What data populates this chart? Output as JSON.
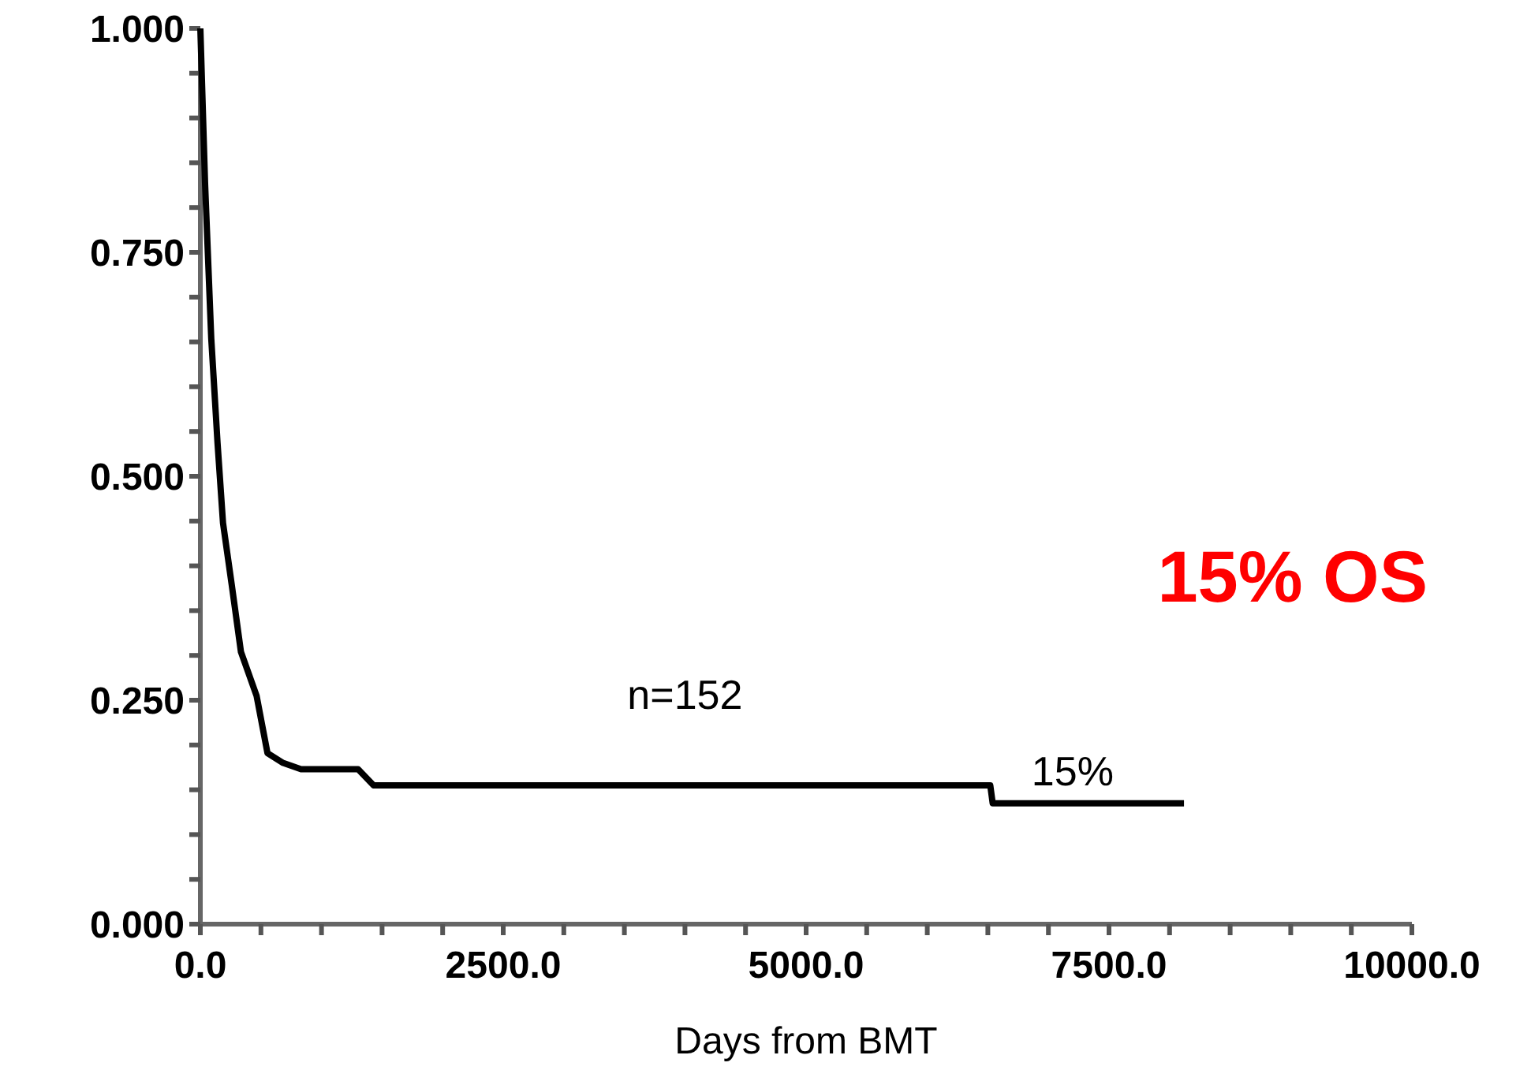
{
  "chart_data": {
    "type": "line",
    "xlabel": "Days from BMT",
    "x": [
      0,
      39,
      90,
      142,
      187,
      258,
      335,
      464,
      554,
      683,
      831,
      1302,
      1430,
      1600,
      6520,
      6540,
      8119
    ],
    "series": [
      {
        "color": "#000000",
        "values": [
          1.0,
          0.827,
          0.654,
          0.537,
          0.448,
          0.38,
          0.304,
          0.255,
          0.191,
          0.18,
          0.173,
          0.173,
          0.155,
          0.155,
          0.155,
          0.135,
          0.135
        ]
      }
    ],
    "xlim": [
      0,
      10000
    ],
    "xticks": [
      {
        "value": 0,
        "label": "0.0"
      },
      {
        "value": 500,
        "label": null
      },
      {
        "value": 1000,
        "label": null
      },
      {
        "value": 1500,
        "label": null
      },
      {
        "value": 2000,
        "label": null
      },
      {
        "value": 2500,
        "label": "2500.0"
      },
      {
        "value": 3000,
        "label": null
      },
      {
        "value": 3500,
        "label": null
      },
      {
        "value": 4000,
        "label": null
      },
      {
        "value": 4500,
        "label": null
      },
      {
        "value": 5000,
        "label": "5000.0"
      },
      {
        "value": 5500,
        "label": null
      },
      {
        "value": 6000,
        "label": null
      },
      {
        "value": 6500,
        "label": null
      },
      {
        "value": 7000,
        "label": null
      },
      {
        "value": 7500,
        "label": "7500.0"
      },
      {
        "value": 8000,
        "label": null
      },
      {
        "value": 8500,
        "label": null
      },
      {
        "value": 9000,
        "label": null
      },
      {
        "value": 9500,
        "label": null
      },
      {
        "value": 10000,
        "label": "10000.0"
      }
    ],
    "ylim": [
      0,
      1
    ],
    "yticks": [
      {
        "value": 0,
        "label": "0.000"
      },
      {
        "value": 0.05,
        "label": null
      },
      {
        "value": 0.1,
        "label": null
      },
      {
        "value": 0.15,
        "label": null
      },
      {
        "value": 0.2,
        "label": null
      },
      {
        "value": 0.25,
        "label": "0.250"
      },
      {
        "value": 0.3,
        "label": null
      },
      {
        "value": 0.35,
        "label": null
      },
      {
        "value": 0.4,
        "label": null
      },
      {
        "value": 0.45,
        "label": null
      },
      {
        "value": 0.5,
        "label": "0.500"
      },
      {
        "value": 0.55,
        "label": null
      },
      {
        "value": 0.6,
        "label": null
      },
      {
        "value": 0.65,
        "label": null
      },
      {
        "value": 0.7,
        "label": null
      },
      {
        "value": 0.75,
        "label": "0.750"
      },
      {
        "value": 0.8,
        "label": null
      },
      {
        "value": 0.85,
        "label": null
      },
      {
        "value": 0.9,
        "label": null
      },
      {
        "value": 0.95,
        "label": null
      },
      {
        "value": 1,
        "label": "1.000"
      }
    ],
    "annotations": [
      "n=152",
      "15%",
      "15% OS"
    ]
  }
}
